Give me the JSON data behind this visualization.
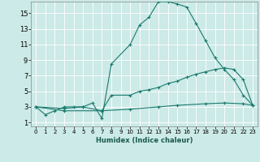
{
  "xlabel": "Humidex (Indice chaleur)",
  "ylabel": "",
  "background_color": "#cceae7",
  "grid_color": "#ffffff",
  "line_color": "#1a7a6e",
  "xlim": [
    -0.5,
    23.5
  ],
  "ylim": [
    0.5,
    16.5
  ],
  "xticks": [
    0,
    1,
    2,
    3,
    4,
    5,
    6,
    7,
    8,
    9,
    10,
    11,
    12,
    13,
    14,
    15,
    16,
    17,
    18,
    19,
    20,
    21,
    22,
    23
  ],
  "yticks": [
    1,
    3,
    5,
    7,
    9,
    11,
    13,
    15
  ],
  "series": [
    {
      "x": [
        0,
        1,
        2,
        3,
        4,
        5,
        6,
        7,
        8,
        10,
        11,
        12,
        13,
        14,
        15,
        16,
        17,
        18,
        19,
        20,
        21,
        22,
        23
      ],
      "y": [
        3,
        2,
        2.5,
        3,
        3,
        3,
        3.5,
        1.5,
        8.5,
        11,
        13.5,
        14.5,
        16.5,
        16.5,
        16.2,
        15.8,
        13.7,
        11.5,
        9.3,
        7.8,
        6.5,
        4.5,
        3.2
      ]
    },
    {
      "x": [
        0,
        3,
        5,
        7,
        8,
        10,
        11,
        12,
        13,
        14,
        15,
        16,
        17,
        18,
        19,
        20,
        21,
        22,
        23
      ],
      "y": [
        3,
        2.8,
        3.0,
        2.5,
        4.5,
        4.5,
        5.0,
        5.2,
        5.5,
        6.0,
        6.3,
        6.8,
        7.2,
        7.5,
        7.8,
        8.0,
        7.8,
        6.5,
        3.2
      ]
    },
    {
      "x": [
        0,
        3,
        7,
        10,
        13,
        15,
        18,
        20,
        22,
        23
      ],
      "y": [
        3,
        2.5,
        2.5,
        2.7,
        3.0,
        3.2,
        3.4,
        3.5,
        3.4,
        3.2
      ]
    }
  ]
}
